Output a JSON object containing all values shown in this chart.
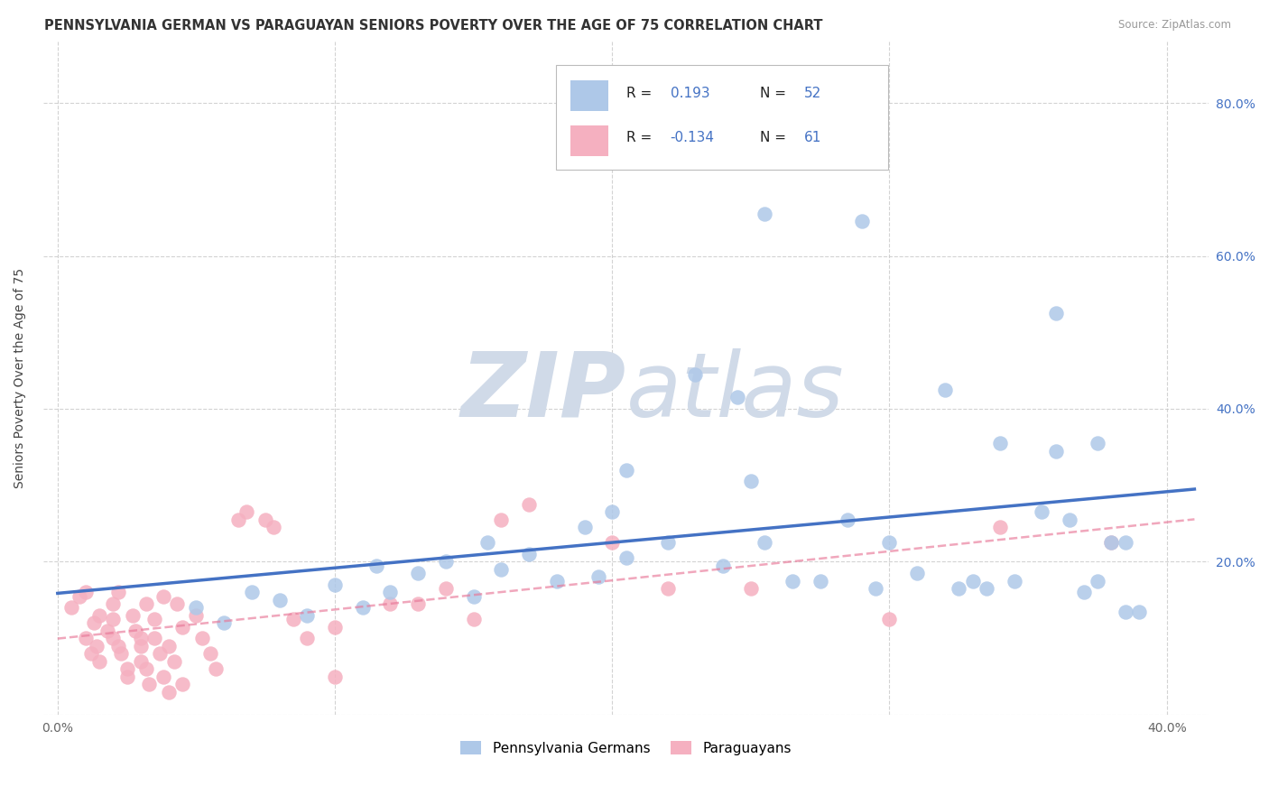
{
  "title": "PENNSYLVANIA GERMAN VS PARAGUAYAN SENIORS POVERTY OVER THE AGE OF 75 CORRELATION CHART",
  "source": "Source: ZipAtlas.com",
  "ylabel": "Seniors Poverty Over the Age of 75",
  "xlim": [
    -0.005,
    0.415
  ],
  "ylim": [
    0.0,
    0.88
  ],
  "xticks": [
    0.0,
    0.1,
    0.2,
    0.3,
    0.4
  ],
  "xticklabels": [
    "0.0%",
    "",
    "",
    "",
    "40.0%"
  ],
  "ytick_positions": [
    0.0,
    0.2,
    0.4,
    0.6,
    0.8
  ],
  "yticklabels_right": [
    "",
    "20.0%",
    "40.0%",
    "60.0%",
    "80.0%"
  ],
  "r_blue": "0.193",
  "n_blue": "52",
  "r_pink": "-0.134",
  "n_pink": "61",
  "legend_labels": [
    "Pennsylvania Germans",
    "Paraguayans"
  ],
  "blue_color": "#aec8e8",
  "pink_color": "#f5b0c0",
  "blue_line_color": "#4472c4",
  "pink_line_color": "#e87898",
  "background_color": "#ffffff",
  "grid_color": "#c8c8c8",
  "watermark_color": "#d0dae8",
  "blue_scatter": [
    [
      0.05,
      0.14
    ],
    [
      0.06,
      0.12
    ],
    [
      0.07,
      0.16
    ],
    [
      0.08,
      0.15
    ],
    [
      0.09,
      0.13
    ],
    [
      0.1,
      0.17
    ],
    [
      0.11,
      0.14
    ],
    [
      0.115,
      0.195
    ],
    [
      0.12,
      0.16
    ],
    [
      0.13,
      0.185
    ],
    [
      0.14,
      0.2
    ],
    [
      0.15,
      0.155
    ],
    [
      0.155,
      0.225
    ],
    [
      0.16,
      0.19
    ],
    [
      0.17,
      0.21
    ],
    [
      0.18,
      0.175
    ],
    [
      0.19,
      0.245
    ],
    [
      0.195,
      0.18
    ],
    [
      0.2,
      0.265
    ],
    [
      0.205,
      0.205
    ],
    [
      0.22,
      0.225
    ],
    [
      0.23,
      0.445
    ],
    [
      0.24,
      0.195
    ],
    [
      0.245,
      0.415
    ],
    [
      0.255,
      0.225
    ],
    [
      0.265,
      0.175
    ],
    [
      0.275,
      0.175
    ],
    [
      0.285,
      0.255
    ],
    [
      0.295,
      0.165
    ],
    [
      0.3,
      0.225
    ],
    [
      0.31,
      0.185
    ],
    [
      0.32,
      0.425
    ],
    [
      0.325,
      0.165
    ],
    [
      0.33,
      0.175
    ],
    [
      0.335,
      0.165
    ],
    [
      0.345,
      0.175
    ],
    [
      0.355,
      0.265
    ],
    [
      0.36,
      0.345
    ],
    [
      0.365,
      0.255
    ],
    [
      0.37,
      0.16
    ],
    [
      0.375,
      0.175
    ],
    [
      0.38,
      0.225
    ],
    [
      0.255,
      0.655
    ],
    [
      0.29,
      0.645
    ],
    [
      0.34,
      0.355
    ],
    [
      0.36,
      0.525
    ],
    [
      0.375,
      0.355
    ],
    [
      0.385,
      0.225
    ],
    [
      0.39,
      0.135
    ],
    [
      0.385,
      0.135
    ],
    [
      0.205,
      0.32
    ],
    [
      0.25,
      0.305
    ]
  ],
  "pink_scatter": [
    [
      0.005,
      0.14
    ],
    [
      0.008,
      0.155
    ],
    [
      0.01,
      0.16
    ],
    [
      0.01,
      0.1
    ],
    [
      0.012,
      0.08
    ],
    [
      0.013,
      0.12
    ],
    [
      0.014,
      0.09
    ],
    [
      0.015,
      0.07
    ],
    [
      0.015,
      0.13
    ],
    [
      0.018,
      0.11
    ],
    [
      0.02,
      0.145
    ],
    [
      0.02,
      0.125
    ],
    [
      0.02,
      0.1
    ],
    [
      0.022,
      0.09
    ],
    [
      0.022,
      0.16
    ],
    [
      0.023,
      0.08
    ],
    [
      0.025,
      0.06
    ],
    [
      0.025,
      0.05
    ],
    [
      0.027,
      0.13
    ],
    [
      0.028,
      0.11
    ],
    [
      0.03,
      0.1
    ],
    [
      0.03,
      0.09
    ],
    [
      0.03,
      0.07
    ],
    [
      0.032,
      0.145
    ],
    [
      0.032,
      0.06
    ],
    [
      0.033,
      0.04
    ],
    [
      0.035,
      0.125
    ],
    [
      0.035,
      0.1
    ],
    [
      0.037,
      0.08
    ],
    [
      0.038,
      0.155
    ],
    [
      0.038,
      0.05
    ],
    [
      0.04,
      0.03
    ],
    [
      0.04,
      0.09
    ],
    [
      0.042,
      0.07
    ],
    [
      0.043,
      0.145
    ],
    [
      0.045,
      0.115
    ],
    [
      0.045,
      0.04
    ],
    [
      0.05,
      0.13
    ],
    [
      0.052,
      0.1
    ],
    [
      0.055,
      0.08
    ],
    [
      0.057,
      0.06
    ],
    [
      0.065,
      0.255
    ],
    [
      0.068,
      0.265
    ],
    [
      0.075,
      0.255
    ],
    [
      0.078,
      0.245
    ],
    [
      0.085,
      0.125
    ],
    [
      0.09,
      0.1
    ],
    [
      0.1,
      0.115
    ],
    [
      0.12,
      0.145
    ],
    [
      0.13,
      0.145
    ],
    [
      0.14,
      0.165
    ],
    [
      0.15,
      0.125
    ],
    [
      0.16,
      0.255
    ],
    [
      0.17,
      0.275
    ],
    [
      0.2,
      0.225
    ],
    [
      0.22,
      0.165
    ],
    [
      0.25,
      0.165
    ],
    [
      0.3,
      0.125
    ],
    [
      0.34,
      0.245
    ],
    [
      0.38,
      0.225
    ],
    [
      0.1,
      0.05
    ]
  ]
}
